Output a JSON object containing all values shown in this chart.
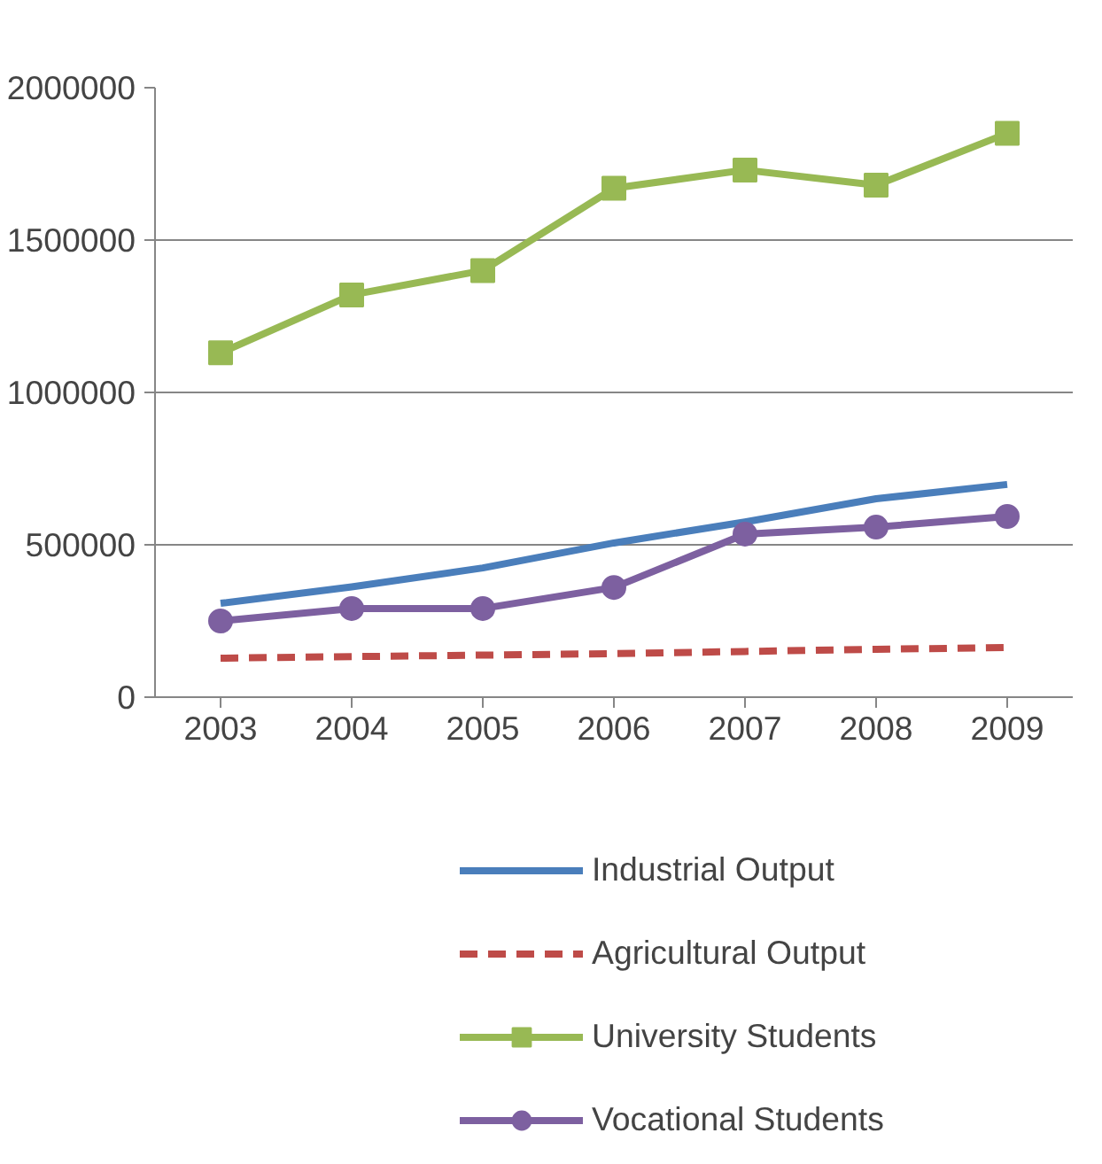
{
  "chart_data": {
    "type": "line",
    "categories": [
      "2003",
      "2004",
      "2005",
      "2006",
      "2007",
      "2008",
      "2009"
    ],
    "series": [
      {
        "name": "Industrial Output",
        "color": "#4a7ebb",
        "marker": "none",
        "line_style": "solid",
        "values": [
          308000,
          362000,
          424000,
          506000,
          575000,
          651000,
          698000
        ]
      },
      {
        "name": "Agricultural Output",
        "color": "#be4b48",
        "marker": "none",
        "line_style": "dashed",
        "values": [
          128000,
          133000,
          138000,
          143000,
          150000,
          157000,
          163000
        ]
      },
      {
        "name": "University Students",
        "color": "#98b954",
        "marker": "square",
        "line_style": "solid",
        "values": [
          1130000,
          1320000,
          1400000,
          1670000,
          1730000,
          1680000,
          1850000
        ]
      },
      {
        "name": "Vocational Students",
        "color": "#7d60a0",
        "marker": "circle",
        "line_style": "solid",
        "values": [
          250000,
          291000,
          291000,
          360000,
          535000,
          558000,
          593000
        ]
      }
    ],
    "ylim": [
      0,
      2000000
    ],
    "yticks": [
      0,
      500000,
      1000000,
      1500000,
      2000000
    ],
    "grid": "y",
    "legend": "bottom"
  }
}
